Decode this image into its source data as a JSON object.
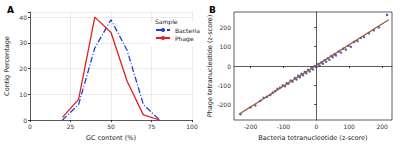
{
  "chart_data": [
    {
      "type": "line",
      "title": "A",
      "x_label": "GC content (%)",
      "y_label": "Contig Percentage",
      "legend_title": "Sample",
      "legend": "upper right",
      "xlim": [
        0,
        100
      ],
      "xticks": [
        0,
        25,
        50,
        75,
        100
      ],
      "ylim": [
        0,
        42
      ],
      "yticks": [
        0,
        10,
        20,
        30,
        40
      ],
      "grid": true,
      "x": [
        20,
        30,
        40,
        50,
        60,
        70,
        80
      ],
      "series": [
        {
          "name": "Bacteria",
          "color": "#1f3fd6",
          "line_style": "dashdot",
          "values": [
            0,
            6,
            28,
            39,
            27,
            6,
            0
          ]
        },
        {
          "name": "Phage",
          "color": "#e02020",
          "line_style": "solid",
          "values": [
            1,
            8,
            40,
            34,
            15,
            2,
            0
          ]
        }
      ]
    },
    {
      "type": "scatter",
      "title": "B",
      "x_label": "Bacteria tetranucleotide (z-score)",
      "y_label": "Phage tetranucleotide (z-score)",
      "xlim": [
        -250,
        230
      ],
      "xticks": [
        -200,
        -100,
        0,
        100,
        200
      ],
      "ylim": [
        -280,
        280
      ],
      "yticks": [
        -200,
        -100,
        0,
        100,
        200
      ],
      "grid": false,
      "series": [
        {
          "type": "scatter",
          "color": "#2b3fa0",
          "marker": "circle",
          "x": [
            -230,
            -200,
            -185,
            -170,
            -160,
            -150,
            -140,
            -132,
            -125,
            -118,
            -110,
            -102,
            -95,
            -90,
            -85,
            -78,
            -72,
            -65,
            -60,
            -55,
            -50,
            -45,
            -40,
            -35,
            -30,
            -25,
            -20,
            -15,
            -10,
            -5,
            0,
            5,
            10,
            15,
            20,
            25,
            30,
            35,
            40,
            45,
            50,
            55,
            60,
            68,
            75,
            82,
            90,
            98,
            105,
            115,
            125,
            135,
            145,
            160,
            175,
            190,
            215
          ],
          "values": [
            -250,
            -215,
            -205,
            -180,
            -165,
            -160,
            -150,
            -138,
            -130,
            -118,
            -112,
            -100,
            -105,
            -88,
            -92,
            -75,
            -80,
            -62,
            -70,
            -50,
            -58,
            -40,
            -48,
            -30,
            -38,
            -20,
            -28,
            -10,
            -18,
            0,
            -6,
            10,
            2,
            18,
            12,
            30,
            22,
            40,
            32,
            52,
            45,
            60,
            55,
            75,
            70,
            90,
            85,
            105,
            100,
            125,
            130,
            145,
            150,
            170,
            185,
            200,
            265
          ]
        },
        {
          "type": "line",
          "color": "#a0522d",
          "line_style": "solid",
          "x": [
            -235,
            220
          ],
          "values": [
            -250,
            240
          ]
        }
      ]
    }
  ]
}
